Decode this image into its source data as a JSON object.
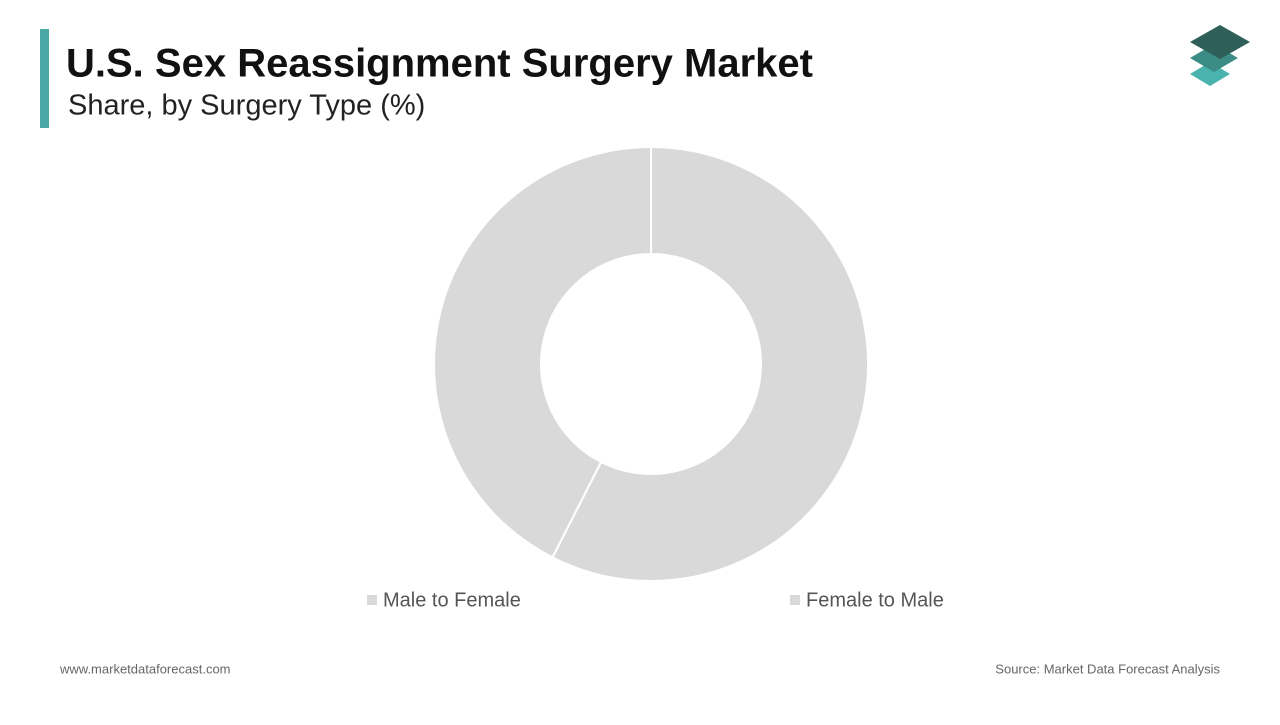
{
  "chart_data": {
    "type": "pie",
    "title": "U.S. Sex Reassignment Surgery Market",
    "subtitle": "Share, by Surgery Type (%)",
    "categories": [
      "Male to Female",
      "Female to Male"
    ],
    "values": [
      57.5,
      42.5
    ],
    "colors": [
      "#d9d9d9",
      "#d9d9d9"
    ]
  },
  "footer": {
    "website": "www.marketdataforecast.com",
    "source": "Source: Market Data Forecast Analysis"
  }
}
